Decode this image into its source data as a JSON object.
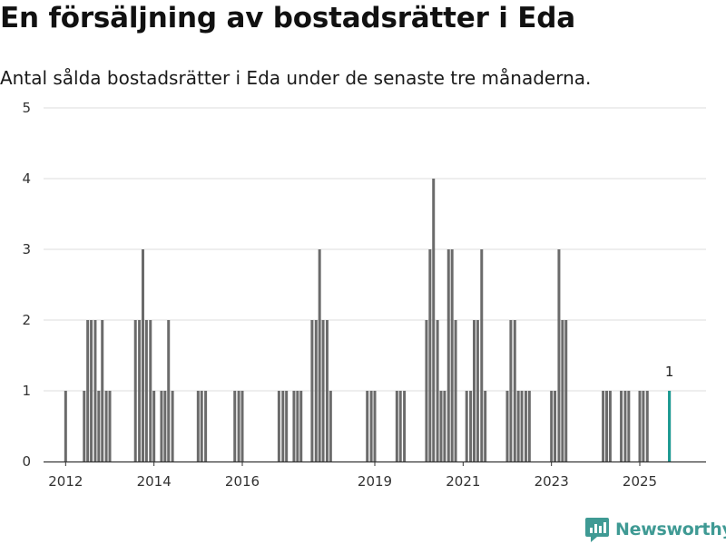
{
  "header": {
    "title": "En försäljning av bostadsrätter i Eda",
    "subtitle": "Antal sålda bostadsrätter i Eda under de senaste tre månaderna."
  },
  "brand": {
    "name": "Newsworthy"
  },
  "colors": {
    "bar": "#6b6b6b",
    "highlight": "#1a9c94",
    "grid": "#dddddd",
    "axis": "#333333",
    "brand": "#3f9a94"
  },
  "chart_data": {
    "type": "bar",
    "title": "En försäljning av bostadsrätter i Eda",
    "subtitle": "Antal sålda bostadsrätter i Eda under de senaste tre månaderna.",
    "xlabel": "",
    "ylabel": "",
    "ylim": [
      0,
      5
    ],
    "yticks": [
      0,
      1,
      2,
      3,
      4,
      5
    ],
    "x_tick_labels": [
      "2012",
      "2014",
      "2016",
      "2019",
      "2021",
      "2023",
      "2025"
    ],
    "x_tick_positions": [
      2012.0,
      2014.0,
      2016.0,
      2019.0,
      2021.0,
      2023.0,
      2025.0
    ],
    "x_range": [
      2011.5,
      2026.5
    ],
    "grid": true,
    "series": [
      {
        "name": "Sålda bostadsrätter",
        "x": [
          2012.0,
          2012.42,
          2012.5,
          2012.58,
          2012.67,
          2012.75,
          2012.83,
          2012.92,
          2013.0,
          2013.58,
          2013.67,
          2013.75,
          2013.83,
          2013.92,
          2014.0,
          2014.17,
          2014.25,
          2014.33,
          2014.42,
          2015.0,
          2015.08,
          2015.17,
          2015.83,
          2015.92,
          2016.0,
          2016.83,
          2016.92,
          2017.0,
          2017.17,
          2017.25,
          2017.33,
          2017.58,
          2017.67,
          2017.75,
          2017.83,
          2017.92,
          2018.0,
          2018.83,
          2018.92,
          2019.0,
          2019.5,
          2019.58,
          2019.67,
          2020.17,
          2020.25,
          2020.33,
          2020.42,
          2020.5,
          2020.58,
          2020.67,
          2020.75,
          2020.83,
          2021.08,
          2021.17,
          2021.25,
          2021.33,
          2021.42,
          2021.5,
          2022.0,
          2022.08,
          2022.17,
          2022.25,
          2022.33,
          2022.42,
          2022.5,
          2023.0,
          2023.08,
          2023.17,
          2023.25,
          2023.33,
          2024.17,
          2024.25,
          2024.33,
          2024.58,
          2024.67,
          2024.75,
          2025.0,
          2025.08,
          2025.17,
          2025.67
        ],
        "values": [
          1,
          1,
          2,
          2,
          2,
          1,
          2,
          1,
          1,
          2,
          2,
          3,
          2,
          2,
          1,
          1,
          1,
          2,
          1,
          1,
          1,
          1,
          1,
          1,
          1,
          1,
          1,
          1,
          1,
          1,
          1,
          2,
          2,
          3,
          2,
          2,
          1,
          1,
          1,
          1,
          1,
          1,
          1,
          2,
          3,
          4,
          2,
          1,
          1,
          3,
          3,
          2,
          1,
          1,
          2,
          2,
          3,
          1,
          1,
          2,
          2,
          1,
          1,
          1,
          1,
          1,
          1,
          3,
          2,
          2,
          1,
          1,
          1,
          1,
          1,
          1,
          1,
          1,
          1,
          1
        ]
      }
    ],
    "highlight": {
      "x": 2025.67,
      "value": 1,
      "label": "1"
    }
  }
}
